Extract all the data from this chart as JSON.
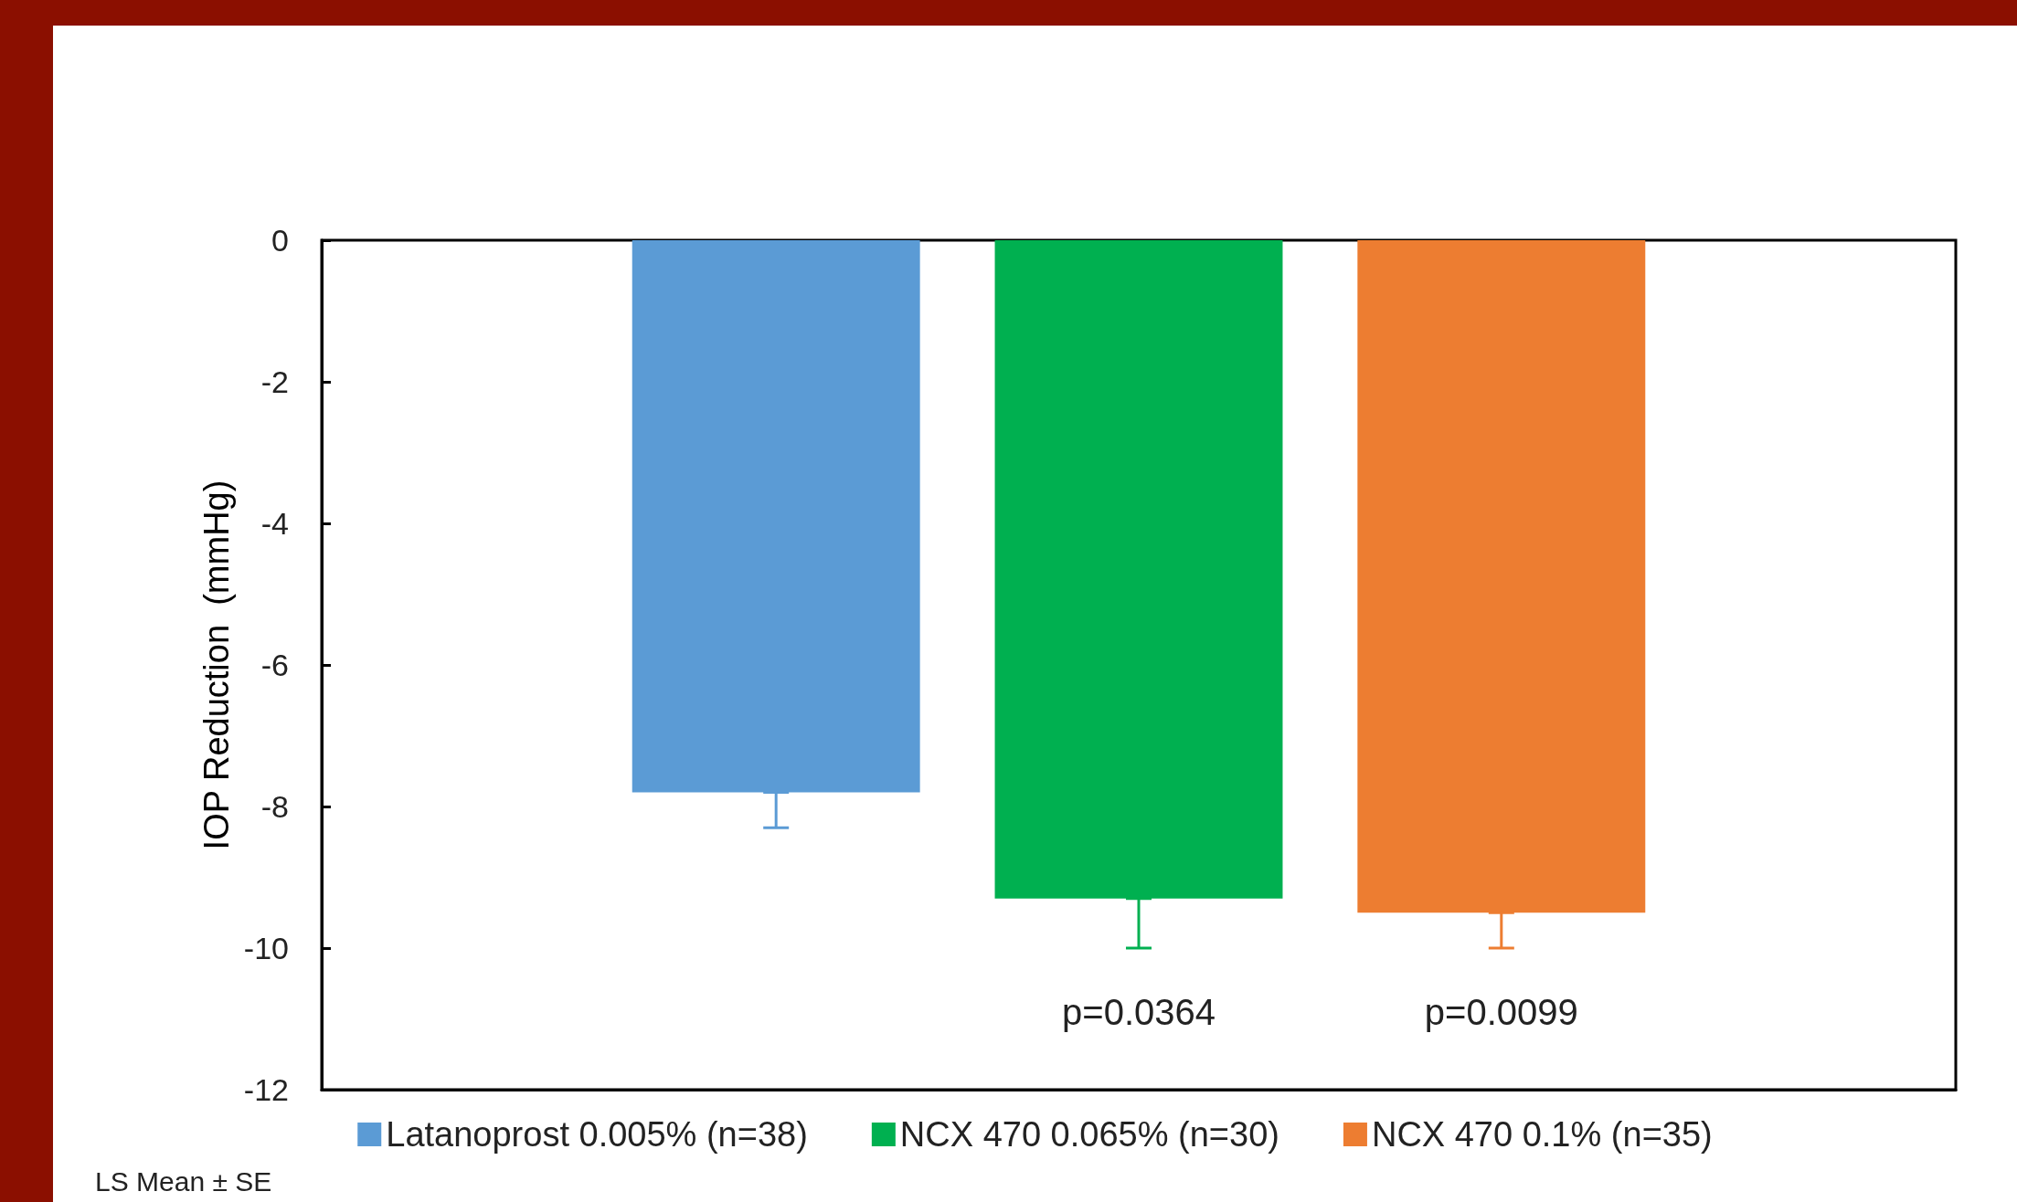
{
  "chart_data": {
    "type": "bar",
    "ylabel": "IOP Reduction  (mmHg)",
    "categories": [
      null
    ],
    "series": [
      {
        "name": "Latanoprost 0.005% (n=38)",
        "color": "#5b9bd5",
        "values": [
          -7.8
        ],
        "errors": [
          [
            -8.3,
            -7.8
          ]
        ]
      },
      {
        "name": "NCX 470 0.065% (n=30)",
        "color": "#00b050",
        "values": [
          -9.3
        ],
        "errors": [
          [
            -10.0,
            -9.3
          ]
        ]
      },
      {
        "name": "NCX 470 0.1% (n=35)",
        "color": "#ed7d31",
        "values": [
          -9.5
        ],
        "errors": [
          [
            -10.0,
            -9.5
          ]
        ]
      }
    ],
    "ylim": [
      -12,
      0
    ],
    "yticks": [
      -12,
      -10,
      -8,
      -6,
      -4,
      -2,
      0
    ],
    "grid": false,
    "legend": "bottom",
    "annotations": [
      "LS Mean ± SE",
      "p=0.0364",
      "p=0.0099"
    ]
  }
}
